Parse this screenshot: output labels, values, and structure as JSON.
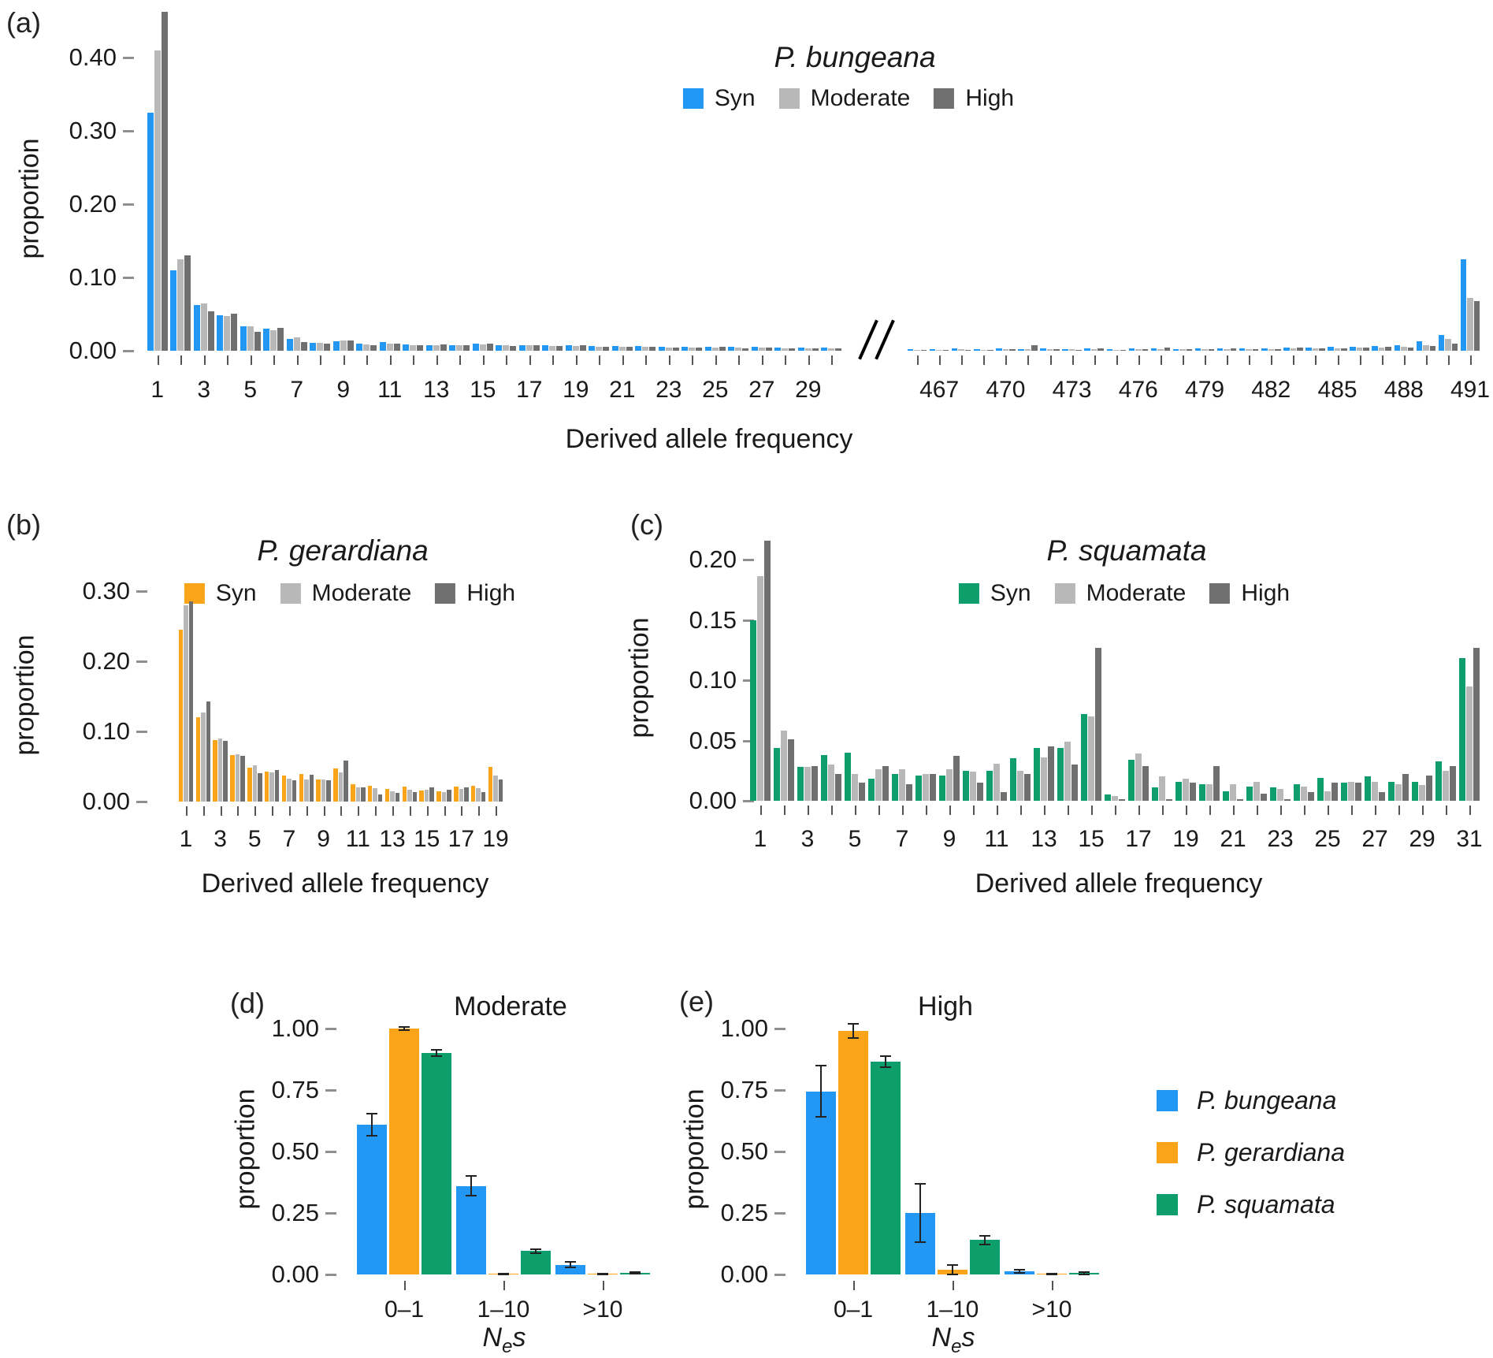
{
  "colors": {
    "syn_blue": "#2297F3",
    "orange": "#FAA41A",
    "green": "#0D9E6C",
    "moderate_gray": "#B8B8B8",
    "high_gray": "#6F6F6F"
  },
  "panels": {
    "a": {
      "tag": "(a)",
      "title": "P. bungeana",
      "ylabel": "proportion",
      "xlabel": "Derived allele frequency",
      "legend": [
        {
          "label": "Syn",
          "color_key": "syn_blue"
        },
        {
          "label": "Moderate",
          "color_key": "moderate_gray"
        },
        {
          "label": "High",
          "color_key": "high_gray"
        }
      ]
    },
    "b": {
      "tag": "(b)",
      "title": "P. gerardiana",
      "ylabel": "proportion",
      "xlabel": "Derived allele frequency",
      "legend": [
        {
          "label": "Syn",
          "color_key": "orange"
        },
        {
          "label": "Moderate",
          "color_key": "moderate_gray"
        },
        {
          "label": "High",
          "color_key": "high_gray"
        }
      ]
    },
    "c": {
      "tag": "(c)",
      "title": "P. squamata",
      "ylabel": "proportion",
      "xlabel": "Derived allele frequency",
      "legend": [
        {
          "label": "Syn",
          "color_key": "green"
        },
        {
          "label": "Moderate",
          "color_key": "moderate_gray"
        },
        {
          "label": "High",
          "color_key": "high_gray"
        }
      ]
    },
    "d": {
      "tag": "(d)",
      "title": "Moderate",
      "ylabel": "proportion",
      "xlabel_parts": {
        "main": "N",
        "sub": "e",
        "tail": "s"
      }
    },
    "e": {
      "tag": "(e)",
      "title": "High",
      "ylabel": "proportion",
      "xlabel_parts": {
        "main": "N",
        "sub": "e",
        "tail": "s"
      }
    },
    "species_legend": [
      {
        "label": "P. bungeana",
        "color_key": "syn_blue"
      },
      {
        "label": "P. gerardiana",
        "color_key": "orange"
      },
      {
        "label": "P. squamata",
        "color_key": "green"
      }
    ]
  },
  "chart_data": [
    {
      "panel": "a",
      "type": "bar",
      "title": "P. bungeana",
      "xlabel": "Derived allele frequency",
      "ylabel": "proportion",
      "ylim": [
        0,
        0.4656
      ],
      "yticks": [
        0,
        0.1,
        0.2,
        0.3,
        0.4
      ],
      "grid": false,
      "legend_position": "top-center",
      "axis_break": true,
      "sections": [
        {
          "x": [
            1,
            2,
            3,
            4,
            5,
            6,
            7,
            8,
            9,
            10,
            11,
            12,
            13,
            14,
            15,
            16,
            17,
            18,
            19,
            20,
            21,
            22,
            23,
            24,
            25,
            26,
            27,
            28,
            29,
            30
          ],
          "xticklabels": [
            "1",
            "",
            "3",
            "",
            "5",
            "",
            "7",
            "",
            "9",
            "",
            "11",
            "",
            "13",
            "",
            "15",
            "",
            "17",
            "",
            "19",
            "",
            "21",
            "",
            "23",
            "",
            "25",
            "",
            "27",
            "",
            "29",
            ""
          ],
          "series": [
            {
              "name": "Syn",
              "color_key": "syn_blue",
              "values": [
                0.325,
                0.11,
                0.062,
                0.048,
                0.033,
                0.03,
                0.016,
                0.011,
                0.013,
                0.01,
                0.012,
                0.009,
                0.008,
                0.008,
                0.01,
                0.008,
                0.008,
                0.007,
                0.007,
                0.006,
                0.006,
                0.006,
                0.005,
                0.005,
                0.005,
                0.005,
                0.005,
                0.004,
                0.004,
                0.004
              ]
            },
            {
              "name": "Moderate",
              "color_key": "moderate_gray",
              "values": [
                0.41,
                0.125,
                0.065,
                0.047,
                0.033,
                0.028,
                0.018,
                0.011,
                0.014,
                0.009,
                0.01,
                0.008,
                0.008,
                0.007,
                0.009,
                0.007,
                0.007,
                0.006,
                0.006,
                0.005,
                0.005,
                0.005,
                0.004,
                0.004,
                0.004,
                0.004,
                0.004,
                0.003,
                0.003,
                0.003
              ]
            },
            {
              "name": "High",
              "color_key": "high_gray",
              "values": [
                0.462,
                0.13,
                0.054,
                0.051,
                0.026,
                0.031,
                0.012,
                0.01,
                0.014,
                0.007,
                0.01,
                0.008,
                0.009,
                0.008,
                0.01,
                0.006,
                0.007,
                0.006,
                0.007,
                0.005,
                0.005,
                0.005,
                0.004,
                0.004,
                0.005,
                0.003,
                0.004,
                0.003,
                0.003,
                0.003
              ]
            }
          ]
        },
        {
          "x": [
            466,
            467,
            468,
            469,
            470,
            471,
            472,
            473,
            474,
            475,
            476,
            477,
            478,
            479,
            480,
            481,
            482,
            483,
            484,
            485,
            486,
            487,
            488,
            489,
            490,
            491
          ],
          "xticklabels": [
            "",
            "467",
            "",
            "",
            "470",
            "",
            "",
            "473",
            "",
            "",
            "476",
            "",
            "",
            "479",
            "",
            "",
            "482",
            "",
            "",
            "485",
            "",
            "",
            "488",
            "",
            "",
            "491"
          ],
          "series": [
            {
              "name": "Syn",
              "color_key": "syn_blue",
              "values": [
                0.002,
                0.002,
                0.003,
                0.002,
                0.003,
                0.002,
                0.003,
                0.002,
                0.003,
                0.002,
                0.003,
                0.003,
                0.002,
                0.003,
                0.003,
                0.003,
                0.003,
                0.004,
                0.004,
                0.005,
                0.005,
                0.006,
                0.008,
                0.013,
                0.022,
                0.125
              ]
            },
            {
              "name": "Moderate",
              "color_key": "moderate_gray",
              "values": [
                0.001,
                0.001,
                0.002,
                0.001,
                0.002,
                0.002,
                0.002,
                0.002,
                0.002,
                0.001,
                0.002,
                0.002,
                0.002,
                0.002,
                0.002,
                0.002,
                0.002,
                0.003,
                0.003,
                0.003,
                0.004,
                0.004,
                0.005,
                0.008,
                0.016,
                0.072
              ]
            },
            {
              "name": "High",
              "color_key": "high_gray",
              "values": [
                0.001,
                0.001,
                0.001,
                0.001,
                0.002,
                0.008,
                0.002,
                0.001,
                0.003,
                0.001,
                0.002,
                0.004,
                0.002,
                0.002,
                0.003,
                0.002,
                0.002,
                0.004,
                0.003,
                0.003,
                0.004,
                0.005,
                0.004,
                0.006,
                0.01,
                0.068
              ]
            }
          ]
        }
      ]
    },
    {
      "panel": "b",
      "type": "bar",
      "title": "P. gerardiana",
      "xlabel": "Derived allele frequency",
      "ylabel": "proportion",
      "ylim": [
        0,
        0.3056
      ],
      "yticks": [
        0,
        0.1,
        0.2,
        0.3
      ],
      "grid": false,
      "legend_position": "top-center",
      "sections": [
        {
          "x": [
            1,
            2,
            3,
            4,
            5,
            6,
            7,
            8,
            9,
            10,
            11,
            12,
            13,
            14,
            15,
            16,
            17,
            18,
            19
          ],
          "xticklabels": [
            "1",
            "",
            "3",
            "",
            "5",
            "",
            "7",
            "",
            "9",
            "",
            "11",
            "",
            "13",
            "",
            "15",
            "",
            "17",
            "",
            "19"
          ],
          "series": [
            {
              "name": "Syn",
              "color_key": "orange",
              "values": [
                0.245,
                0.12,
                0.088,
                0.066,
                0.048,
                0.043,
                0.037,
                0.039,
                0.032,
                0.047,
                0.025,
                0.022,
                0.018,
                0.021,
                0.016,
                0.015,
                0.021,
                0.023,
                0.05
              ]
            },
            {
              "name": "Moderate",
              "color_key": "moderate_gray",
              "values": [
                0.28,
                0.127,
                0.09,
                0.067,
                0.052,
                0.042,
                0.033,
                0.031,
                0.031,
                0.042,
                0.02,
                0.019,
                0.015,
                0.017,
                0.017,
                0.014,
                0.018,
                0.019,
                0.037
              ]
            },
            {
              "name": "High",
              "color_key": "high_gray",
              "values": [
                0.285,
                0.143,
                0.086,
                0.065,
                0.04,
                0.045,
                0.03,
                0.038,
                0.03,
                0.058,
                0.02,
                0.01,
                0.012,
                0.014,
                0.02,
                0.017,
                0.02,
                0.013,
                0.032
              ]
            }
          ]
        }
      ]
    },
    {
      "panel": "c",
      "type": "bar",
      "title": "P. squamata",
      "xlabel": "Derived allele frequency",
      "ylabel": "proportion",
      "ylim": [
        0,
        0.2157
      ],
      "yticks": [
        0,
        0.05,
        0.1,
        0.15,
        0.2
      ],
      "grid": false,
      "legend_position": "top-center",
      "sections": [
        {
          "x": [
            1,
            2,
            3,
            4,
            5,
            6,
            7,
            8,
            9,
            10,
            11,
            12,
            13,
            14,
            15,
            16,
            17,
            18,
            19,
            20,
            21,
            22,
            23,
            24,
            25,
            26,
            27,
            28,
            29,
            30,
            31
          ],
          "xticklabels": [
            "1",
            "",
            "3",
            "",
            "5",
            "",
            "7",
            "",
            "9",
            "",
            "11",
            "",
            "13",
            "",
            "15",
            "",
            "17",
            "",
            "19",
            "",
            "21",
            "",
            "23",
            "",
            "25",
            "",
            "27",
            "",
            "29",
            "",
            "31"
          ],
          "series": [
            {
              "name": "Syn",
              "color_key": "green",
              "values": [
                0.15,
                0.044,
                0.028,
                0.038,
                0.04,
                0.018,
                0.022,
                0.021,
                0.021,
                0.025,
                0.025,
                0.035,
                0.044,
                0.044,
                0.072,
                0.005,
                0.034,
                0.011,
                0.016,
                0.014,
                0.008,
                0.012,
                0.011,
                0.014,
                0.019,
                0.015,
                0.02,
                0.016,
                0.016,
                0.033,
                0.118
              ]
            },
            {
              "name": "Moderate",
              "color_key": "moderate_gray",
              "values": [
                0.186,
                0.058,
                0.028,
                0.03,
                0.022,
                0.026,
                0.026,
                0.022,
                0.026,
                0.024,
                0.031,
                0.025,
                0.036,
                0.049,
                0.07,
                0.004,
                0.039,
                0.02,
                0.018,
                0.014,
                0.014,
                0.016,
                0.01,
                0.012,
                0.008,
                0.016,
                0.016,
                0.014,
                0.013,
                0.025,
                0.095
              ]
            },
            {
              "name": "High",
              "color_key": "high_gray",
              "values": [
                0.216,
                0.051,
                0.029,
                0.022,
                0.015,
                0.029,
                0.014,
                0.022,
                0.037,
                0.015,
                0.007,
                0.022,
                0.045,
                0.03,
                0.127,
                0.001,
                0.029,
                0.001,
                0.015,
                0.029,
                0.001,
                0.006,
                0.001,
                0.007,
                0.015,
                0.015,
                0.007,
                0.022,
                0.021,
                0.029,
                0.127
              ]
            }
          ]
        }
      ]
    },
    {
      "panel": "d",
      "type": "bar",
      "title": "Moderate",
      "xlabel": "Nes",
      "ylabel": "proportion",
      "ylim": [
        0,
        1.0256
      ],
      "yticks": [
        0,
        0.25,
        0.5,
        0.75,
        1.0
      ],
      "grid": false,
      "error_bars": true,
      "sections": [
        {
          "x": [
            "0–1",
            "1–10",
            ">10"
          ],
          "xticklabels": [
            "0–1",
            "1–10",
            ">10"
          ],
          "series": [
            {
              "name": "P. bungeana",
              "color_key": "syn_blue",
              "values": [
                0.61,
                0.36,
                0.04
              ],
              "err": [
                0.045,
                0.04,
                0.012
              ]
            },
            {
              "name": "P. gerardiana",
              "color_key": "orange",
              "values": [
                1.0,
                0.002,
                0.001
              ],
              "err": [
                0.006,
                0.002,
                0.001
              ]
            },
            {
              "name": "P. squamata",
              "color_key": "green",
              "values": [
                0.9,
                0.095,
                0.006
              ],
              "err": [
                0.012,
                0.008,
                0.004
              ]
            }
          ]
        }
      ]
    },
    {
      "panel": "e",
      "type": "bar",
      "title": "High",
      "xlabel": "Nes",
      "ylabel": "proportion",
      "ylim": [
        0,
        1.0256
      ],
      "yticks": [
        0,
        0.25,
        0.5,
        0.75,
        1.0
      ],
      "grid": false,
      "error_bars": true,
      "sections": [
        {
          "x": [
            "0–1",
            "1–10",
            ">10"
          ],
          "xticklabels": [
            "0–1",
            "1–10",
            ">10"
          ],
          "series": [
            {
              "name": "P. bungeana",
              "color_key": "syn_blue",
              "values": [
                0.745,
                0.25,
                0.013
              ],
              "err": [
                0.105,
                0.12,
                0.006
              ]
            },
            {
              "name": "P. gerardiana",
              "color_key": "orange",
              "values": [
                0.99,
                0.018,
                0.001
              ],
              "err": [
                0.03,
                0.022,
                0.002
              ]
            },
            {
              "name": "P. squamata",
              "color_key": "green",
              "values": [
                0.865,
                0.14,
                0.006
              ],
              "err": [
                0.022,
                0.018,
                0.005
              ]
            }
          ]
        }
      ]
    }
  ]
}
